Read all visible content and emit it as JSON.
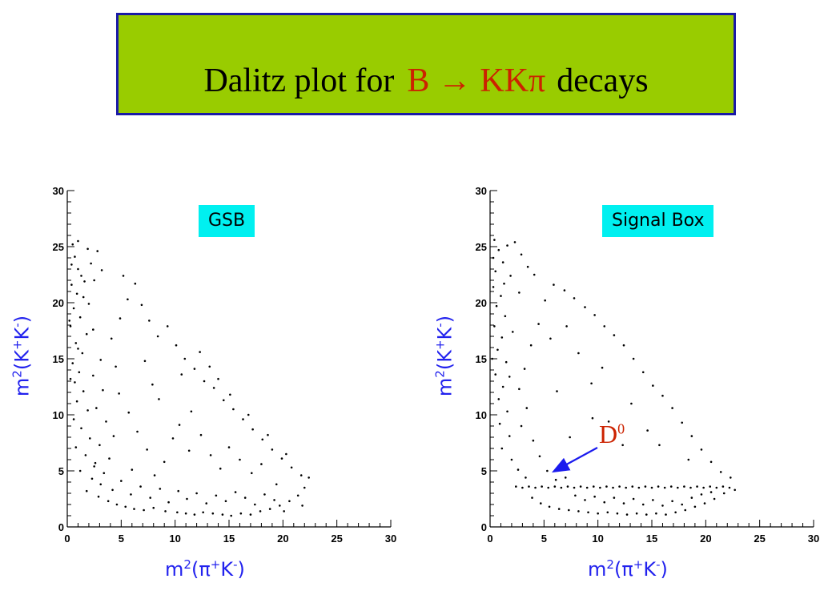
{
  "slide": {
    "title_prefix": "Dalitz plot for",
    "title_formula": "B → KKπ",
    "title_suffix": "decays",
    "colors": {
      "title_bg": "#99cc00",
      "title_border": "#1a1aa6",
      "formula": "#cc2200",
      "box_bg": "#00f0f0",
      "axis_label": "#2222ee",
      "annotation": "#cc2200",
      "arrow": "#1a1aee"
    }
  },
  "chart_data": [
    {
      "type": "scatter",
      "label_box": "GSB",
      "xlabel": {
        "base": "m",
        "exp": "2",
        "open": "(",
        "p1": "π",
        "c1": "+",
        "p2": "K",
        "c2": "-",
        "close": ")"
      },
      "ylabel": {
        "base": "m",
        "exp": "2",
        "open": "(",
        "p1": "K",
        "c1": "+",
        "p2": "K",
        "c2": "-",
        "close": ")"
      },
      "xlim": [
        0,
        30
      ],
      "ylim": [
        0,
        30
      ],
      "xticks": [
        0,
        5,
        10,
        15,
        20,
        25,
        30
      ],
      "yticks": [
        0,
        5,
        10,
        15,
        20,
        25,
        30
      ],
      "points": [
        [
          0.5,
          25.2
        ],
        [
          0.7,
          24.1
        ],
        [
          1.0,
          23.0
        ],
        [
          1.3,
          22.4
        ],
        [
          0.4,
          21.6
        ],
        [
          0.9,
          20.8
        ],
        [
          1.6,
          21.9
        ],
        [
          2.2,
          23.5
        ],
        [
          2.8,
          24.6
        ],
        [
          3.2,
          22.9
        ],
        [
          0.6,
          19.5
        ],
        [
          1.2,
          18.7
        ],
        [
          0.3,
          17.9
        ],
        [
          1.8,
          17.2
        ],
        [
          0.8,
          16.4
        ],
        [
          1.4,
          15.5
        ],
        [
          0.5,
          14.6
        ],
        [
          1.1,
          13.8
        ],
        [
          0.7,
          12.9
        ],
        [
          1.5,
          12.1
        ],
        [
          0.9,
          11.2
        ],
        [
          1.9,
          10.4
        ],
        [
          0.6,
          9.6
        ],
        [
          1.3,
          8.8
        ],
        [
          2.1,
          7.9
        ],
        [
          0.8,
          7.1
        ],
        [
          1.7,
          6.4
        ],
        [
          2.6,
          5.7
        ],
        [
          1.2,
          5.0
        ],
        [
          2.3,
          4.3
        ],
        [
          3.1,
          3.8
        ],
        [
          1.8,
          3.2
        ],
        [
          2.9,
          2.7
        ],
        [
          3.8,
          2.3
        ],
        [
          4.6,
          2.0
        ],
        [
          5.4,
          1.8
        ],
        [
          6.2,
          1.6
        ],
        [
          7.1,
          1.5
        ],
        [
          8.0,
          1.7
        ],
        [
          9.1,
          1.4
        ],
        [
          10.2,
          1.3
        ],
        [
          11.0,
          1.2
        ],
        [
          11.8,
          1.1
        ],
        [
          12.6,
          1.3
        ],
        [
          13.5,
          1.2
        ],
        [
          14.4,
          1.1
        ],
        [
          15.2,
          1.0
        ],
        [
          16.1,
          1.2
        ],
        [
          17.0,
          1.1
        ],
        [
          17.9,
          1.4
        ],
        [
          18.8,
          1.6
        ],
        [
          19.7,
          1.9
        ],
        [
          20.6,
          2.3
        ],
        [
          21.4,
          2.8
        ],
        [
          22.0,
          3.5
        ],
        [
          22.4,
          4.4
        ],
        [
          21.8,
          1.9
        ],
        [
          20.1,
          1.4
        ],
        [
          19.2,
          2.4
        ],
        [
          18.3,
          2.9
        ],
        [
          17.4,
          2.0
        ],
        [
          16.5,
          2.6
        ],
        [
          15.6,
          3.1
        ],
        [
          14.7,
          2.3
        ],
        [
          13.8,
          2.8
        ],
        [
          12.9,
          2.1
        ],
        [
          12.0,
          3.0
        ],
        [
          11.1,
          2.5
        ],
        [
          10.3,
          3.2
        ],
        [
          9.4,
          2.2
        ],
        [
          8.6,
          3.4
        ],
        [
          7.7,
          2.6
        ],
        [
          6.8,
          3.6
        ],
        [
          5.9,
          2.9
        ],
        [
          5.0,
          4.1
        ],
        [
          4.2,
          3.3
        ],
        [
          3.4,
          4.8
        ],
        [
          2.5,
          5.4
        ],
        [
          3.9,
          6.1
        ],
        [
          3.0,
          7.3
        ],
        [
          4.3,
          8.1
        ],
        [
          3.6,
          9.4
        ],
        [
          2.7,
          10.6
        ],
        [
          3.3,
          12.2
        ],
        [
          2.4,
          13.5
        ],
        [
          3.1,
          14.9
        ],
        [
          4.1,
          16.8
        ],
        [
          4.9,
          18.6
        ],
        [
          5.6,
          20.3
        ],
        [
          6.3,
          21.7
        ],
        [
          5.2,
          22.4
        ],
        [
          6.9,
          19.8
        ],
        [
          7.6,
          18.4
        ],
        [
          8.4,
          17.0
        ],
        [
          9.3,
          17.9
        ],
        [
          10.1,
          16.2
        ],
        [
          10.9,
          15.0
        ],
        [
          11.8,
          14.1
        ],
        [
          12.7,
          13.0
        ],
        [
          13.6,
          12.4
        ],
        [
          14.5,
          11.3
        ],
        [
          15.4,
          10.5
        ],
        [
          16.3,
          9.6
        ],
        [
          17.2,
          8.7
        ],
        [
          18.1,
          7.8
        ],
        [
          19.0,
          6.9
        ],
        [
          19.9,
          6.1
        ],
        [
          20.8,
          5.3
        ],
        [
          21.7,
          4.6
        ],
        [
          12.3,
          15.6
        ],
        [
          13.2,
          14.3
        ],
        [
          14.0,
          13.2
        ],
        [
          15.1,
          11.8
        ],
        [
          16.8,
          10.0
        ],
        [
          18.6,
          8.2
        ],
        [
          20.3,
          6.5
        ],
        [
          8.5,
          11.4
        ],
        [
          9.8,
          7.9
        ],
        [
          7.2,
          14.8
        ],
        [
          10.6,
          13.6
        ],
        [
          11.5,
          10.3
        ],
        [
          12.4,
          8.2
        ],
        [
          13.3,
          6.4
        ],
        [
          14.2,
          5.2
        ],
        [
          15.0,
          7.1
        ],
        [
          16.0,
          6.0
        ],
        [
          17.1,
          4.8
        ],
        [
          18.0,
          5.6
        ],
        [
          19.4,
          3.8
        ],
        [
          9.0,
          5.8
        ],
        [
          8.1,
          4.6
        ],
        [
          7.4,
          6.9
        ],
        [
          6.5,
          8.5
        ],
        [
          5.7,
          10.2
        ],
        [
          4.8,
          11.9
        ],
        [
          10.4,
          9.1
        ],
        [
          11.3,
          6.8
        ],
        [
          6.0,
          5.1
        ],
        [
          4.5,
          14.3
        ],
        [
          7.9,
          12.7
        ],
        [
          1.0,
          25.5
        ],
        [
          1.9,
          24.8
        ],
        [
          2.5,
          22.0
        ],
        [
          0.4,
          23.4
        ],
        [
          2.0,
          19.9
        ],
        [
          1.5,
          20.5
        ],
        [
          0.2,
          18.4
        ],
        [
          2.4,
          17.6
        ],
        [
          1.0,
          15.9
        ],
        [
          0.3,
          13.2
        ]
      ]
    },
    {
      "type": "scatter",
      "label_box": "Signal Box",
      "annotation": {
        "base": "D",
        "exp": "0"
      },
      "xlabel": {
        "base": "m",
        "exp": "2",
        "open": "(",
        "p1": "π",
        "c1": "+",
        "p2": "K",
        "c2": "-",
        "close": ")"
      },
      "ylabel": {
        "base": "m",
        "exp": "2",
        "open": "(",
        "p1": "K",
        "c1": "+",
        "p2": "K",
        "c2": "-",
        "close": ")"
      },
      "xlim": [
        0,
        30
      ],
      "ylim": [
        0,
        30
      ],
      "xticks": [
        0,
        5,
        10,
        15,
        20,
        25,
        30
      ],
      "yticks": [
        0,
        5,
        10,
        15,
        20,
        25,
        30
      ],
      "points": [
        [
          0.4,
          25.6
        ],
        [
          0.8,
          24.7
        ],
        [
          1.2,
          23.6
        ],
        [
          0.5,
          22.8
        ],
        [
          1.6,
          25.1
        ],
        [
          2.3,
          25.4
        ],
        [
          2.9,
          24.3
        ],
        [
          3.5,
          23.2
        ],
        [
          4.1,
          22.5
        ],
        [
          0.3,
          21.4
        ],
        [
          1.0,
          20.6
        ],
        [
          0.6,
          19.7
        ],
        [
          1.4,
          18.8
        ],
        [
          0.4,
          17.9
        ],
        [
          1.1,
          16.9
        ],
        [
          0.7,
          15.8
        ],
        [
          1.5,
          14.7
        ],
        [
          0.5,
          13.6
        ],
        [
          1.2,
          12.5
        ],
        [
          0.8,
          11.4
        ],
        [
          1.6,
          10.3
        ],
        [
          0.9,
          9.2
        ],
        [
          1.8,
          8.1
        ],
        [
          1.1,
          7.0
        ],
        [
          2.0,
          6.0
        ],
        [
          2.6,
          5.1
        ],
        [
          3.3,
          4.4
        ],
        [
          2.4,
          3.6
        ],
        [
          3.0,
          3.5
        ],
        [
          3.6,
          3.6
        ],
        [
          4.2,
          3.5
        ],
        [
          4.8,
          3.6
        ],
        [
          5.4,
          3.5
        ],
        [
          6.0,
          3.6
        ],
        [
          6.6,
          3.5
        ],
        [
          7.2,
          3.6
        ],
        [
          7.8,
          3.5
        ],
        [
          8.4,
          3.6
        ],
        [
          9.0,
          3.5
        ],
        [
          9.6,
          3.6
        ],
        [
          10.2,
          3.5
        ],
        [
          10.8,
          3.6
        ],
        [
          11.4,
          3.5
        ],
        [
          12.0,
          3.6
        ],
        [
          12.6,
          3.5
        ],
        [
          13.2,
          3.6
        ],
        [
          13.8,
          3.5
        ],
        [
          14.4,
          3.6
        ],
        [
          15.0,
          3.5
        ],
        [
          15.6,
          3.6
        ],
        [
          16.2,
          3.5
        ],
        [
          16.8,
          3.6
        ],
        [
          17.4,
          3.5
        ],
        [
          18.0,
          3.6
        ],
        [
          18.6,
          3.5
        ],
        [
          19.2,
          3.6
        ],
        [
          19.8,
          3.5
        ],
        [
          20.4,
          3.6
        ],
        [
          21.0,
          3.5
        ],
        [
          21.6,
          3.6
        ],
        [
          22.2,
          3.5
        ],
        [
          22.7,
          3.3
        ],
        [
          3.9,
          2.6
        ],
        [
          4.7,
          2.1
        ],
        [
          5.5,
          1.8
        ],
        [
          6.4,
          1.6
        ],
        [
          7.3,
          1.5
        ],
        [
          8.2,
          1.4
        ],
        [
          9.1,
          1.3
        ],
        [
          10.0,
          1.2
        ],
        [
          10.9,
          1.3
        ],
        [
          11.8,
          1.2
        ],
        [
          12.7,
          1.1
        ],
        [
          13.6,
          1.2
        ],
        [
          14.5,
          1.1
        ],
        [
          15.4,
          1.2
        ],
        [
          16.3,
          1.1
        ],
        [
          17.2,
          1.3
        ],
        [
          18.1,
          1.5
        ],
        [
          19.0,
          1.8
        ],
        [
          19.9,
          2.1
        ],
        [
          20.8,
          2.5
        ],
        [
          21.7,
          3.0
        ],
        [
          22.3,
          4.4
        ],
        [
          21.4,
          4.9
        ],
        [
          20.5,
          5.8
        ],
        [
          19.6,
          6.9
        ],
        [
          18.7,
          8.1
        ],
        [
          17.8,
          9.3
        ],
        [
          16.9,
          10.6
        ],
        [
          16.0,
          11.7
        ],
        [
          15.1,
          12.6
        ],
        [
          14.2,
          13.8
        ],
        [
          13.3,
          15.0
        ],
        [
          12.4,
          16.2
        ],
        [
          11.5,
          17.1
        ],
        [
          10.6,
          17.9
        ],
        [
          9.7,
          18.9
        ],
        [
          8.8,
          19.6
        ],
        [
          7.8,
          20.4
        ],
        [
          6.9,
          21.1
        ],
        [
          5.9,
          21.6
        ],
        [
          5.1,
          20.2
        ],
        [
          4.5,
          18.1
        ],
        [
          3.8,
          16.2
        ],
        [
          3.2,
          14.1
        ],
        [
          2.7,
          12.3
        ],
        [
          3.4,
          10.6
        ],
        [
          2.9,
          9.0
        ],
        [
          4.0,
          7.7
        ],
        [
          4.6,
          6.3
        ],
        [
          5.3,
          5.0
        ],
        [
          6.1,
          4.2
        ],
        [
          7.0,
          4.4
        ],
        [
          7.9,
          2.8
        ],
        [
          8.8,
          2.4
        ],
        [
          9.7,
          2.7
        ],
        [
          10.6,
          2.2
        ],
        [
          11.5,
          2.6
        ],
        [
          12.4,
          2.1
        ],
        [
          13.3,
          2.5
        ],
        [
          14.2,
          2.0
        ],
        [
          15.1,
          2.4
        ],
        [
          16.0,
          1.9
        ],
        [
          16.9,
          2.3
        ],
        [
          17.8,
          2.0
        ],
        [
          18.7,
          2.6
        ],
        [
          19.6,
          2.9
        ],
        [
          20.5,
          3.1
        ],
        [
          11.0,
          9.4
        ],
        [
          12.3,
          7.3
        ],
        [
          9.4,
          12.8
        ],
        [
          10.4,
          14.2
        ],
        [
          13.1,
          11.0
        ],
        [
          14.6,
          8.6
        ],
        [
          15.7,
          7.3
        ],
        [
          18.4,
          6.0
        ],
        [
          7.4,
          8.0
        ],
        [
          6.2,
          12.1
        ],
        [
          8.2,
          15.5
        ],
        [
          9.5,
          9.7
        ],
        [
          5.6,
          16.8
        ],
        [
          7.1,
          17.9
        ],
        [
          0.3,
          24.0
        ],
        [
          1.9,
          22.4
        ],
        [
          2.7,
          20.9
        ],
        [
          1.3,
          21.7
        ],
        [
          2.1,
          17.4
        ],
        [
          0.2,
          15.0
        ],
        [
          1.8,
          13.4
        ]
      ]
    }
  ]
}
